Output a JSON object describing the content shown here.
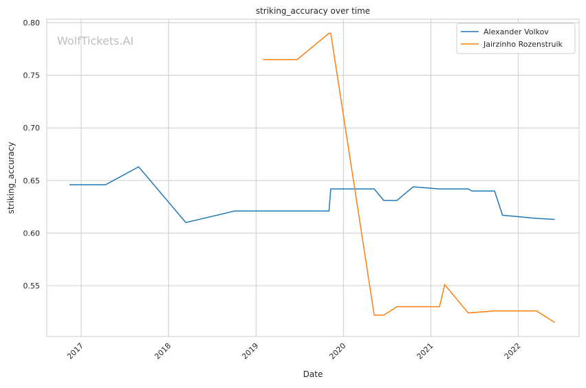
{
  "chart_data": {
    "type": "line",
    "title": "striking_accuracy over time",
    "xlabel": "Date",
    "ylabel": "striking_accuracy",
    "watermark": "WolfTickets.AI",
    "xlim": [
      "2016-08-10",
      "2022-09-12"
    ],
    "ylim": [
      0.5017,
      0.8033
    ],
    "x_ticks": [
      "2017",
      "2018",
      "2019",
      "2020",
      "2021",
      "2022"
    ],
    "y_ticks": [
      "0.55",
      "0.60",
      "0.65",
      "0.70",
      "0.75",
      "0.80"
    ],
    "grid": true,
    "legend_position": "top-right",
    "series": [
      {
        "name": "Alexander Volkov",
        "color": "#1f77b4",
        "points": [
          [
            "2016-11-13",
            0.646
          ],
          [
            "2017-04-13",
            0.646
          ],
          [
            "2017-08-29",
            0.663
          ],
          [
            "2018-03-14",
            0.61
          ],
          [
            "2018-10-04",
            0.621
          ],
          [
            "2019-11-02",
            0.621
          ],
          [
            "2019-11-09",
            0.642
          ],
          [
            "2020-05-09",
            0.642
          ],
          [
            "2020-06-18",
            0.631
          ],
          [
            "2020-08-12",
            0.631
          ],
          [
            "2020-10-19",
            0.644
          ],
          [
            "2021-02-06",
            0.642
          ],
          [
            "2021-06-06",
            0.642
          ],
          [
            "2021-06-21",
            0.64
          ],
          [
            "2021-09-24",
            0.64
          ],
          [
            "2021-10-27",
            0.617
          ],
          [
            "2022-03-18",
            0.614
          ],
          [
            "2022-06-02",
            0.613
          ]
        ]
      },
      {
        "name": "Jairzinho Rozenstruik",
        "color": "#ff7f0e",
        "points": [
          [
            "2019-01-30",
            0.765
          ],
          [
            "2019-06-22",
            0.765
          ],
          [
            "2019-11-02",
            0.79
          ],
          [
            "2019-11-09",
            0.79
          ],
          [
            "2020-05-09",
            0.522
          ],
          [
            "2020-06-18",
            0.522
          ],
          [
            "2020-08-12",
            0.53
          ],
          [
            "2021-02-06",
            0.53
          ],
          [
            "2021-02-28",
            0.551
          ],
          [
            "2021-06-06",
            0.524
          ],
          [
            "2021-09-20",
            0.526
          ],
          [
            "2022-03-18",
            0.526
          ],
          [
            "2022-06-02",
            0.515
          ]
        ]
      }
    ]
  }
}
